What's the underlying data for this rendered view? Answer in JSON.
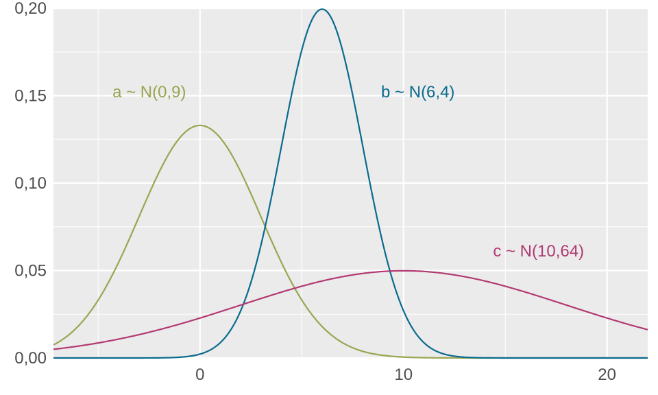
{
  "chart_data": {
    "type": "line",
    "title": "",
    "xlabel": "",
    "ylabel": "",
    "xlim": [
      -7.2,
      22
    ],
    "ylim": [
      0,
      0.2
    ],
    "x_ticks": [
      0,
      10,
      20
    ],
    "x_tick_labels": [
      "0",
      "10",
      "20"
    ],
    "x_minor_ticks": [
      -5,
      5,
      15
    ],
    "y_ticks": [
      0,
      0.05,
      0.1,
      0.15,
      0.2
    ],
    "y_tick_labels": [
      "0,00",
      "0,05",
      "0,10",
      "0,15",
      "0,20"
    ],
    "y_minor_ticks": [
      0.025,
      0.075,
      0.125,
      0.175
    ],
    "grid": true,
    "panel_background": "#ebebeb",
    "legend": "none",
    "series": [
      {
        "label": "a ~ N(0,9)",
        "mean": 0,
        "variance": 9,
        "color": "#9aa550",
        "label_x": -4.3,
        "label_y": 0.149
      },
      {
        "label": "b ~ N(6,4)",
        "mean": 6,
        "variance": 4,
        "color": "#0a6a8f",
        "label_x": 8.9,
        "label_y": 0.149
      },
      {
        "label": "c ~ N(10,64)",
        "mean": 10,
        "variance": 64,
        "color": "#b23a72",
        "label_x": 14.4,
        "label_y": 0.058
      }
    ]
  }
}
